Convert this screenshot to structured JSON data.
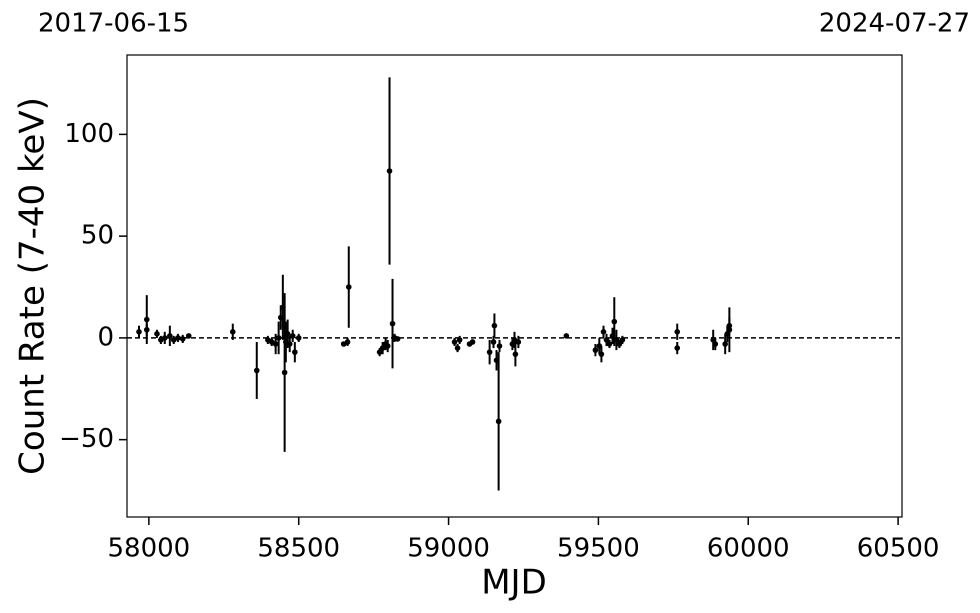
{
  "chart_data": {
    "type": "scatter",
    "annotations": [
      "2017-06-15",
      "2024-07-27"
    ],
    "x_label": "MJD",
    "y_label": "Count Rate (7-40 keV)",
    "color": "#000000",
    "xlim": [
      57927,
      60513
    ],
    "xticks": [
      58000,
      58500,
      59000,
      59500,
      60000,
      60500
    ],
    "ylim": [
      -88,
      139
    ],
    "yticks": [
      {
        "value": -50,
        "label": "−50"
      },
      0,
      50,
      100
    ],
    "hline": 0,
    "x": [
      57967,
      57993,
      57993,
      58027,
      58040,
      58053,
      58070,
      58083,
      58097,
      58113,
      58133,
      58280,
      58360,
      58397,
      58410,
      58423,
      58433,
      58440,
      58447,
      58453,
      58457,
      58463,
      58470,
      58480,
      58487,
      58500,
      58650,
      58663,
      58667,
      58770,
      58780,
      58790,
      58797,
      58803,
      58813,
      58820,
      58830,
      59020,
      59030,
      59037,
      59070,
      59080,
      59137,
      59150,
      59153,
      59160,
      59167,
      59170,
      59213,
      59220,
      59223,
      59233,
      59393,
      59490,
      59503,
      59510,
      59517,
      59527,
      59537,
      59547,
      59553,
      59560,
      59570,
      59580,
      59763,
      59763,
      59883,
      59890,
      59923,
      59930,
      59937,
      59937
    ],
    "values": [
      3,
      9,
      4,
      2,
      -1,
      0,
      1,
      -1,
      0,
      -0.5,
      1,
      3,
      -16,
      -1,
      -2,
      -3,
      0,
      10,
      15,
      -17,
      -2,
      2,
      -3,
      1,
      -7,
      0,
      -3,
      -2,
      25,
      -7,
      -5,
      -3,
      -4,
      82,
      7,
      0,
      -0.5,
      -2,
      -5,
      -1,
      -3,
      -2,
      -7,
      -2,
      6,
      -11,
      -41,
      -4,
      -3,
      -1,
      -8,
      -2,
      1,
      -6,
      -4,
      -8,
      3,
      -1,
      -3,
      1,
      8,
      -1,
      -3,
      -1,
      3,
      -5,
      -1,
      -3,
      -3,
      2,
      4,
      6
    ],
    "errors": [
      3,
      12,
      3,
      2,
      2,
      3,
      5,
      2,
      2,
      2,
      1,
      4,
      14,
      2,
      2,
      5,
      8,
      6,
      16,
      39,
      10,
      7,
      4,
      3,
      5,
      2,
      1,
      2,
      20,
      2,
      3,
      3,
      3,
      46,
      22,
      2,
      1,
      2,
      2,
      2,
      1,
      1,
      6,
      3,
      6,
      5,
      34,
      3,
      3,
      4,
      6,
      3,
      1,
      3,
      4,
      4,
      3,
      3,
      2,
      4,
      12,
      5,
      2,
      2,
      4,
      3,
      5,
      3,
      5,
      4,
      11,
      4
    ]
  }
}
